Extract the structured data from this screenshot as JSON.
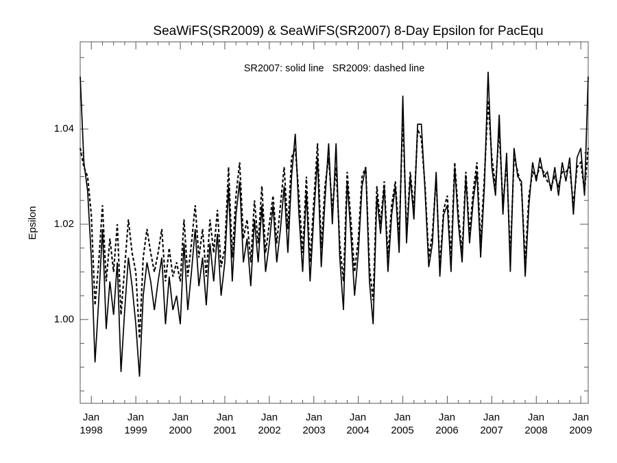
{
  "title": "SeaWiFS(SR2009) & SeaWiFS(SR2007) 8-Day Epsilon for PacEqu",
  "chart_data": {
    "type": "line",
    "title": "SeaWiFS(SR2009) & SeaWiFS(SR2007) 8-Day Epsilon for PacEqu",
    "xlabel": "",
    "ylabel": "Epsilon",
    "annotation": "SR2007: solid line   SR2009: dashed line",
    "grid": false,
    "legend_position": "inside-top-center",
    "background_color": "#ffffff",
    "axis_color": "#555555",
    "line_color": "#000000",
    "x_start": 1997.75,
    "x_step_years": 0.0833333,
    "xlim": [
      1997.75,
      2009.167
    ],
    "ylim": [
      0.9824,
      1.0583
    ],
    "xaxis": {
      "minor_tick_interval_years": 0.25,
      "tick_labels": [
        {
          "month": "Jan",
          "year": "1998"
        },
        {
          "month": "Jan",
          "year": "1999"
        },
        {
          "month": "Jan",
          "year": "2000"
        },
        {
          "month": "Jan",
          "year": "2001"
        },
        {
          "month": "Jan",
          "year": "2002"
        },
        {
          "month": "Jan",
          "year": "2003"
        },
        {
          "month": "Jan",
          "year": "2004"
        },
        {
          "month": "Jan",
          "year": "2005"
        },
        {
          "month": "Jan",
          "year": "2006"
        },
        {
          "month": "Jan",
          "year": "2007"
        },
        {
          "month": "Jan",
          "year": "2008"
        },
        {
          "month": "Jan",
          "year": "2009"
        }
      ]
    },
    "yaxis": {
      "tick_values": [
        1.0,
        1.02,
        1.04
      ],
      "tick_labels": [
        "1.00",
        "1.02",
        "1.04"
      ],
      "minor_tick_interval": 0.005
    },
    "series": [
      {
        "name": "SR2007",
        "style": "solid",
        "color": "#000000",
        "values": [
          1.051,
          1.033,
          1.027,
          1.013,
          0.991,
          1.004,
          1.019,
          0.998,
          1.008,
          1.001,
          1.012,
          0.989,
          1.002,
          1.013,
          1.007,
          0.999,
          0.988,
          1.005,
          1.012,
          1.008,
          1.002,
          1.008,
          1.013,
          0.999,
          1.009,
          1.002,
          1.005,
          0.999,
          1.016,
          1.002,
          1.01,
          1.019,
          1.007,
          1.013,
          1.003,
          1.016,
          1.008,
          1.018,
          1.005,
          1.012,
          1.028,
          1.008,
          1.022,
          1.029,
          1.012,
          1.017,
          1.007,
          1.021,
          1.012,
          1.024,
          1.01,
          1.016,
          1.024,
          1.012,
          1.019,
          1.028,
          1.014,
          1.03,
          1.039,
          1.022,
          1.01,
          1.027,
          1.008,
          1.022,
          1.034,
          1.011,
          1.025,
          1.037,
          1.02,
          1.037,
          1.013,
          1.002,
          1.029,
          1.018,
          1.005,
          1.014,
          1.028,
          1.032,
          1.008,
          0.999,
          1.026,
          1.018,
          1.028,
          1.01,
          1.022,
          1.028,
          1.014,
          1.047,
          1.016,
          1.03,
          1.021,
          1.041,
          1.041,
          1.027,
          1.011,
          1.016,
          1.031,
          1.009,
          1.022,
          1.024,
          1.01,
          1.032,
          1.02,
          1.012,
          1.03,
          1.016,
          1.025,
          1.031,
          1.013,
          1.028,
          1.052,
          1.032,
          1.026,
          1.043,
          1.022,
          1.035,
          1.01,
          1.036,
          1.03,
          1.029,
          1.009,
          1.024,
          1.033,
          1.029,
          1.034,
          1.03,
          1.031,
          1.027,
          1.032,
          1.026,
          1.033,
          1.029,
          1.034,
          1.022,
          1.034,
          1.036,
          1.026,
          1.051
        ]
      },
      {
        "name": "SR2009",
        "style": "dashed",
        "color": "#000000",
        "values": [
          1.036,
          1.032,
          1.03,
          1.022,
          1.003,
          1.012,
          1.024,
          1.008,
          1.017,
          1.01,
          1.02,
          1.001,
          1.011,
          1.021,
          1.014,
          1.01,
          0.996,
          1.013,
          1.019,
          1.014,
          1.01,
          1.014,
          1.019,
          1.008,
          1.015,
          1.009,
          1.012,
          1.008,
          1.021,
          1.009,
          1.016,
          1.024,
          1.013,
          1.019,
          1.009,
          1.021,
          1.014,
          1.023,
          1.011,
          1.015,
          1.032,
          1.013,
          1.026,
          1.033,
          1.017,
          1.021,
          1.012,
          1.025,
          1.016,
          1.028,
          1.014,
          1.02,
          1.026,
          1.016,
          1.024,
          1.032,
          1.019,
          1.034,
          1.036,
          1.026,
          1.014,
          1.03,
          1.012,
          1.025,
          1.037,
          1.015,
          1.028,
          1.034,
          1.023,
          1.032,
          1.016,
          1.008,
          1.031,
          1.021,
          1.01,
          1.017,
          1.03,
          1.032,
          1.011,
          1.004,
          1.028,
          1.02,
          1.029,
          1.013,
          1.024,
          1.029,
          1.017,
          1.043,
          1.018,
          1.031,
          1.023,
          1.04,
          1.038,
          1.028,
          1.013,
          1.018,
          1.03,
          1.011,
          1.023,
          1.026,
          1.013,
          1.033,
          1.022,
          1.014,
          1.031,
          1.018,
          1.027,
          1.033,
          1.016,
          1.03,
          1.046,
          1.034,
          1.028,
          1.04,
          1.024,
          1.033,
          1.013,
          1.034,
          1.031,
          1.028,
          1.012,
          1.026,
          1.031,
          1.03,
          1.032,
          1.031,
          1.029,
          1.028,
          1.03,
          1.028,
          1.031,
          1.031,
          1.032,
          1.024,
          1.032,
          1.033,
          1.027,
          1.036
        ]
      }
    ]
  }
}
